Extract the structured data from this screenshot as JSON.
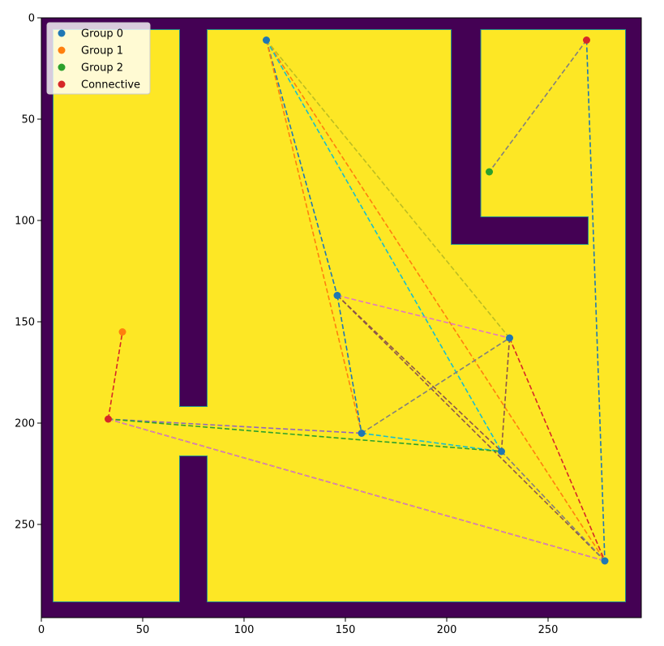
{
  "chart_data": {
    "type": "scatter",
    "title": "",
    "xlabel": "",
    "ylabel": "",
    "xlim": [
      0,
      296
    ],
    "ylim": [
      296,
      0
    ],
    "y_inverted": true,
    "grid": false,
    "legend_position": "top-left",
    "colors": {
      "background": "#440154",
      "free_space": "#fde725",
      "boundary": "#21908d"
    },
    "x_ticks": [
      0,
      50,
      100,
      150,
      200,
      250
    ],
    "y_ticks": [
      0,
      50,
      100,
      150,
      200,
      250
    ],
    "free_regions": [
      {
        "x0": 6,
        "x1": 68,
        "y0": 6,
        "y1": 288
      },
      {
        "x0": 82,
        "x1": 202,
        "y0": 6,
        "y1": 288
      },
      {
        "x0": 202,
        "x1": 288,
        "y0": 112,
        "y1": 288
      },
      {
        "x0": 217,
        "x1": 288,
        "y0": 6,
        "y1": 98
      },
      {
        "x0": 270,
        "x1": 288,
        "y0": 98,
        "y1": 112
      },
      {
        "x0": 68,
        "x1": 82,
        "y0": 192,
        "y1": 216
      }
    ],
    "series": [
      {
        "name": "Group 0",
        "color": "#1f77b4",
        "points": [
          [
            111,
            11
          ],
          [
            146,
            137
          ],
          [
            158,
            205
          ],
          [
            227,
            214
          ],
          [
            231,
            158
          ],
          [
            278,
            268
          ]
        ]
      },
      {
        "name": "Group 1",
        "color": "#ff7f0e",
        "points": [
          [
            40,
            155
          ]
        ]
      },
      {
        "name": "Group 2",
        "color": "#2ca02c",
        "points": [
          [
            221,
            76
          ]
        ]
      },
      {
        "name": "Connective",
        "color": "#d62728",
        "points": [
          [
            33,
            198
          ],
          [
            269,
            11
          ]
        ]
      }
    ],
    "edges": [
      {
        "from": [
          111,
          11
        ],
        "to": [
          146,
          137
        ],
        "color": "#1f77b4"
      },
      {
        "from": [
          111,
          11
        ],
        "to": [
          158,
          205
        ],
        "color": "#ff7f0e"
      },
      {
        "from": [
          111,
          11
        ],
        "to": [
          278,
          268
        ],
        "color": "#ff7f0e"
      },
      {
        "from": [
          111,
          11
        ],
        "to": [
          227,
          214
        ],
        "color": "#17becf"
      },
      {
        "from": [
          111,
          11
        ],
        "to": [
          231,
          158
        ],
        "color": "#bcbd22"
      },
      {
        "from": [
          269,
          11
        ],
        "to": [
          221,
          76
        ],
        "color": "#7f7f7f"
      },
      {
        "from": [
          269,
          11
        ],
        "to": [
          278,
          268
        ],
        "color": "#1f77b4"
      },
      {
        "from": [
          146,
          137
        ],
        "to": [
          158,
          205
        ],
        "color": "#1f77b4"
      },
      {
        "from": [
          146,
          137
        ],
        "to": [
          231,
          158
        ],
        "color": "#e377c2"
      },
      {
        "from": [
          146,
          137
        ],
        "to": [
          227,
          214
        ],
        "color": "#8c564b"
      },
      {
        "from": [
          146,
          137
        ],
        "to": [
          278,
          268
        ],
        "color": "#8c564b"
      },
      {
        "from": [
          158,
          205
        ],
        "to": [
          231,
          158
        ],
        "color": "#7f7f7f"
      },
      {
        "from": [
          158,
          205
        ],
        "to": [
          227,
          214
        ],
        "color": "#17becf"
      },
      {
        "from": [
          231,
          158
        ],
        "to": [
          227,
          214
        ],
        "color": "#8c564b"
      },
      {
        "from": [
          231,
          158
        ],
        "to": [
          278,
          268
        ],
        "color": "#d62728"
      },
      {
        "from": [
          227,
          214
        ],
        "to": [
          278,
          268
        ],
        "color": "#7f7f7f"
      },
      {
        "from": [
          33,
          198
        ],
        "to": [
          40,
          155
        ],
        "color": "#d62728"
      },
      {
        "from": [
          33,
          198
        ],
        "to": [
          158,
          205
        ],
        "color": "#9467bd"
      },
      {
        "from": [
          33,
          198
        ],
        "to": [
          227,
          214
        ],
        "color": "#2ca02c"
      },
      {
        "from": [
          33,
          198
        ],
        "to": [
          278,
          268
        ],
        "color": "#2ca02c"
      },
      {
        "from": [
          33,
          198
        ],
        "to": [
          278,
          268
        ],
        "color": "#e377c2"
      }
    ]
  }
}
